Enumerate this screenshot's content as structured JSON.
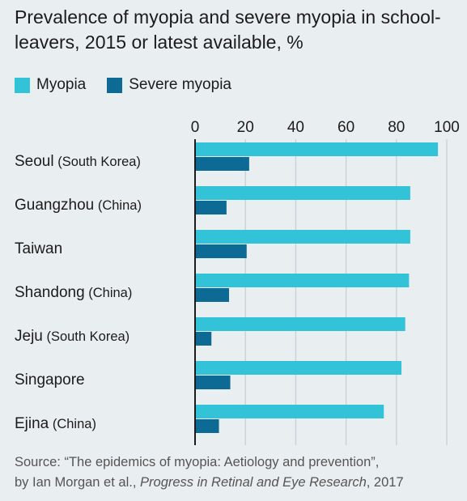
{
  "title": "Prevalence of myopia and severe myopia in school-leavers, 2015 or latest available, %",
  "chart_data": {
    "type": "bar",
    "orientation": "horizontal",
    "categories": [
      "Seoul (South Korea)",
      "Guangzhou (China)",
      "Taiwan",
      "Shandong (China)",
      "Jeju (South Korea)",
      "Singapore",
      "Ejina (China)"
    ],
    "series": [
      {
        "name": "Myopia",
        "color": "#33c3d8",
        "values": [
          96.5,
          85.5,
          85.5,
          85,
          83.5,
          82,
          75
        ]
      },
      {
        "name": "Severe myopia",
        "color": "#0c6a94",
        "values": [
          21.5,
          12.5,
          20.5,
          13.5,
          6.5,
          14,
          9.5
        ]
      }
    ],
    "xlim": [
      0,
      100
    ],
    "xticks": [
      0,
      20,
      40,
      60,
      80,
      100
    ],
    "grid": true,
    "legend_position": "top-left"
  },
  "source": {
    "line1": "Source: “The epidemics of myopia: Aetiology and prevention”,",
    "line2_prefix": "by Ian Morgan et al., ",
    "line2_journal": "Progress in Retinal and Eye Research",
    "line2_suffix": ", 2017"
  }
}
